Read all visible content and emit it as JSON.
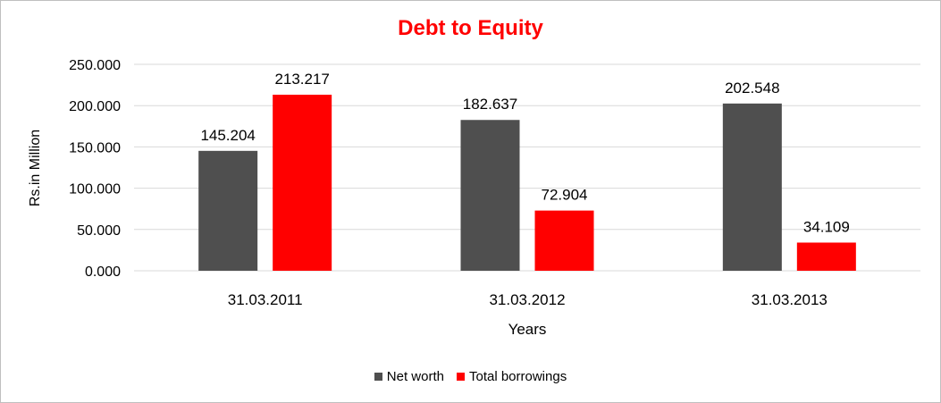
{
  "chart_data": {
    "type": "bar",
    "title": "Debt to Equity",
    "xlabel": "Years",
    "ylabel": "Rs.in Million",
    "categories": [
      "31.03.2011",
      "31.03.2012",
      "31.03.2013"
    ],
    "series": [
      {
        "name": "Net worth",
        "values": [
          145.204,
          182.637,
          202.548
        ],
        "color": "#4f4f4f",
        "labels": [
          "145.204",
          "182.637",
          "202.548"
        ]
      },
      {
        "name": "Total borrowings",
        "values": [
          213.217,
          72.904,
          34.109
        ],
        "color": "#ff0000",
        "labels": [
          "213.217",
          "72.904",
          "34.109"
        ]
      }
    ],
    "ylim": [
      0,
      250
    ],
    "yticks": [
      "0.000",
      "50.000",
      "100.000",
      "150.000",
      "200.000",
      "250.000"
    ],
    "ytick_values": [
      0,
      50,
      100,
      150,
      200,
      250
    ],
    "grid": true,
    "legend_position": "bottom",
    "title_color": "#ff0000"
  }
}
